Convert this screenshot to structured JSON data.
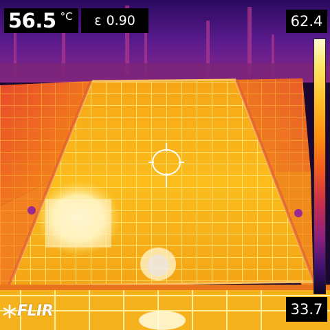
{
  "camera": {
    "spot_temperature": "56.5",
    "temperature_unit": "°C",
    "emissivity_symbol": "ε",
    "emissivity_value": "0.90",
    "scale_max": "62.4",
    "scale_min": "33.7",
    "brand": "FLIR"
  },
  "icons": {
    "crosshair": "spot-meter-crosshair-icon",
    "logo_mark": "flir-snowflake-icon"
  },
  "colors": {
    "overlay_background": "#000000",
    "overlay_text": "#ffffff",
    "palette": "iron"
  }
}
